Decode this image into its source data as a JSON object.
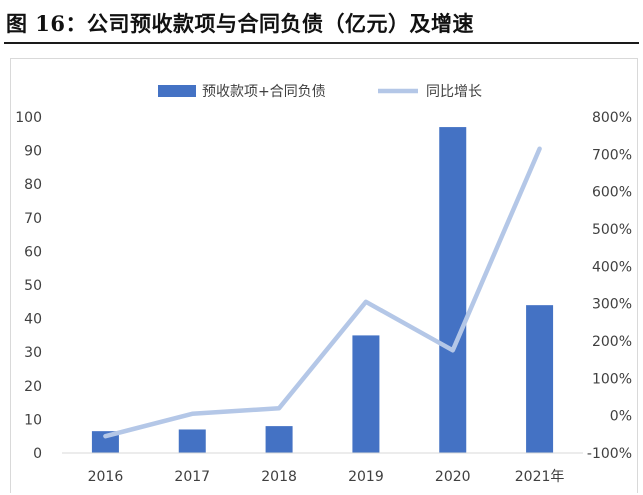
{
  "figure": {
    "title": "图 16：公司预收款项与合同负债（亿元）及增速"
  },
  "colors": {
    "bar": "#4472c4",
    "line": "#b4c7e7",
    "axis": "#d9d9d9",
    "text": "#404040"
  },
  "chart_data": {
    "type": "bar",
    "categories": [
      "2016",
      "2017",
      "2018",
      "2019",
      "2020",
      "2021年"
    ],
    "series": [
      {
        "name": "预收款项+合同负债",
        "type": "bar",
        "axis": "left",
        "values": [
          6.5,
          7,
          8,
          35,
          97,
          44
        ]
      },
      {
        "name": "同比增长",
        "type": "line",
        "axis": "right",
        "values": [
          -55,
          5,
          20,
          305,
          175,
          715
        ]
      }
    ],
    "y_left": {
      "min": 0,
      "max": 100,
      "step": 10,
      "ticks": [
        "0",
        "10",
        "20",
        "30",
        "40",
        "50",
        "60",
        "70",
        "80",
        "90",
        "100"
      ]
    },
    "y_right": {
      "min": -100,
      "max": 800,
      "step": 100,
      "ticks": [
        "-100%",
        "0%",
        "100%",
        "200%",
        "300%",
        "400%",
        "500%",
        "600%",
        "700%",
        "800%"
      ]
    },
    "legend_position": "top",
    "grid": false
  }
}
